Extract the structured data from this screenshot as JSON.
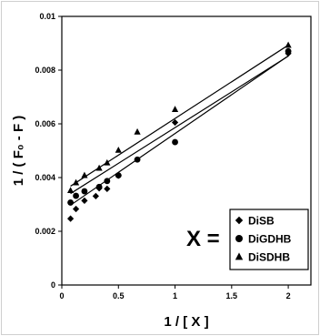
{
  "chart_data": {
    "type": "scatter",
    "title": "",
    "xlabel": "1 / [ X ]",
    "ylabel": "1 / ( F₀ - F )",
    "xlim": [
      0,
      2.2
    ],
    "ylim": [
      0,
      0.01
    ],
    "x_ticks": [
      "0",
      "0.5",
      "1",
      "1.5",
      "2"
    ],
    "y_ticks": [
      "0",
      "0.002",
      "0.004",
      "0.006",
      "0.008",
      "0.01"
    ],
    "grid": false,
    "legend_position": "bottom-right",
    "legend_prefix": "X =",
    "series": [
      {
        "name": "DiSB",
        "marker": "diamond",
        "color": "#000000",
        "x": [
          0.077,
          0.125,
          0.2,
          0.3,
          0.33,
          0.4,
          0.5,
          1.0,
          2.0
        ],
        "y": [
          0.00247,
          0.00283,
          0.00314,
          0.00331,
          0.0036,
          0.00358,
          0.00407,
          0.00605,
          0.00862
        ],
        "fit": {
          "slope": 0.00289,
          "intercept": 0.00275
        }
      },
      {
        "name": "DiGDHB",
        "marker": "circle",
        "color": "#000000",
        "x": [
          0.077,
          0.125,
          0.2,
          0.33,
          0.4,
          0.5,
          0.667,
          1.0,
          2.0
        ],
        "y": [
          0.00307,
          0.00332,
          0.00349,
          0.00365,
          0.00387,
          0.00408,
          0.00467,
          0.00532,
          0.0087
        ],
        "fit": {
          "slope": 0.00266,
          "intercept": 0.0032
        }
      },
      {
        "name": "DiSDHB",
        "marker": "triangle",
        "color": "#000000",
        "x": [
          0.077,
          0.125,
          0.2,
          0.33,
          0.4,
          0.5,
          0.667,
          1.0,
          2.0
        ],
        "y": [
          0.00352,
          0.00381,
          0.00408,
          0.00435,
          0.00455,
          0.00502,
          0.0057,
          0.00654,
          0.00893
        ],
        "fit": {
          "slope": 0.00273,
          "intercept": 0.00347
        }
      }
    ]
  }
}
